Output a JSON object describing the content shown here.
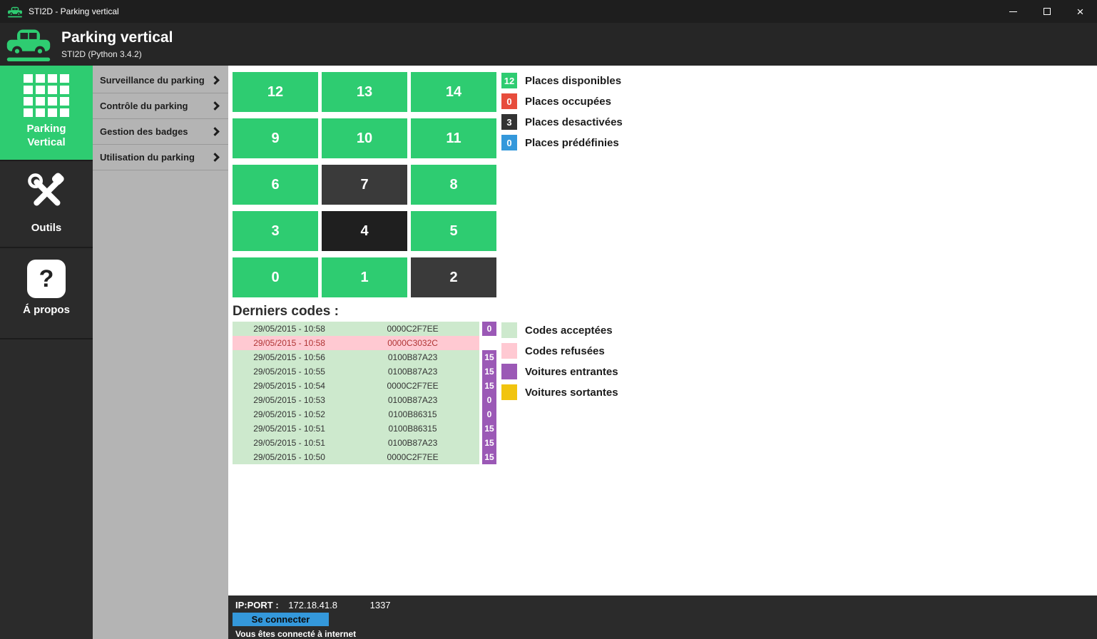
{
  "titlebar": {
    "title": "STI2D - Parking vertical"
  },
  "header": {
    "title": "Parking vertical",
    "subtitle": "STI2D (Python 3.4.2)"
  },
  "sidebar": {
    "items": [
      {
        "label": "Parking Vertical",
        "icon": "parking-grid-icon",
        "active": true
      },
      {
        "label": "Outils",
        "icon": "tools-icon",
        "active": false
      },
      {
        "label": "Á propos",
        "icon": "question-icon",
        "active": false
      }
    ]
  },
  "menu": {
    "items": [
      {
        "label": "Surveillance du parking"
      },
      {
        "label": "Contrôle du parking"
      },
      {
        "label": "Gestion des badges"
      },
      {
        "label": "Utilisation du parking"
      }
    ]
  },
  "colors": {
    "available": "#2ecc71",
    "occupied": "#e74c3c",
    "disabled": "#3a3a3a",
    "disabled_dark": "#1f1f1f",
    "predefined": "#3498db"
  },
  "parking": {
    "spots": [
      {
        "number": "12",
        "state": "available"
      },
      {
        "number": "13",
        "state": "available"
      },
      {
        "number": "14",
        "state": "available"
      },
      {
        "number": "9",
        "state": "available"
      },
      {
        "number": "10",
        "state": "available"
      },
      {
        "number": "11",
        "state": "available"
      },
      {
        "number": "6",
        "state": "available"
      },
      {
        "number": "7",
        "state": "disabled"
      },
      {
        "number": "8",
        "state": "available"
      },
      {
        "number": "3",
        "state": "available"
      },
      {
        "number": "4",
        "state": "disabled_dark"
      },
      {
        "number": "5",
        "state": "available"
      },
      {
        "number": "0",
        "state": "available"
      },
      {
        "number": "1",
        "state": "available"
      },
      {
        "number": "2",
        "state": "disabled"
      }
    ],
    "legend": [
      {
        "count": "12",
        "label": "Places disponibles",
        "color": "#2ecc71"
      },
      {
        "count": "0",
        "label": "Places occupées",
        "color": "#e74c3c"
      },
      {
        "count": "3",
        "label": "Places desactivées",
        "color": "#333333"
      },
      {
        "count": "0",
        "label": "Places prédéfinies",
        "color": "#3498db"
      }
    ]
  },
  "codes": {
    "heading": "Derniers codes :",
    "rows": [
      {
        "datetime": "29/05/2015 - 10:58",
        "code": "0000C2F7EE",
        "badge": "0",
        "status": "accepted"
      },
      {
        "datetime": "29/05/2015 - 10:58",
        "code": "0000C3032C",
        "badge": null,
        "status": "refused"
      },
      {
        "datetime": "29/05/2015 - 10:56",
        "code": "0100B87A23",
        "badge": "15",
        "status": "accepted"
      },
      {
        "datetime": "29/05/2015 - 10:55",
        "code": "0100B87A23",
        "badge": "15",
        "status": "accepted"
      },
      {
        "datetime": "29/05/2015 - 10:54",
        "code": "0000C2F7EE",
        "badge": "15",
        "status": "accepted"
      },
      {
        "datetime": "29/05/2015 - 10:53",
        "code": "0100B87A23",
        "badge": "0",
        "status": "accepted"
      },
      {
        "datetime": "29/05/2015 - 10:52",
        "code": "0100B86315",
        "badge": "0",
        "status": "accepted"
      },
      {
        "datetime": "29/05/2015 - 10:51",
        "code": "0100B86315",
        "badge": "15",
        "status": "accepted"
      },
      {
        "datetime": "29/05/2015 - 10:51",
        "code": "0100B87A23",
        "badge": "15",
        "status": "accepted"
      },
      {
        "datetime": "29/05/2015 - 10:50",
        "code": "0000C2F7EE",
        "badge": "15",
        "status": "accepted"
      }
    ],
    "legend": [
      {
        "label": "Codes acceptées",
        "color": "#cde9cd"
      },
      {
        "label": "Codes refusées",
        "color": "#ffc9d2"
      },
      {
        "label": "Voitures entrantes",
        "color": "#9b59b6"
      },
      {
        "label": "Voitures sortantes",
        "color": "#f1c40f"
      }
    ]
  },
  "footer": {
    "ip_label": "IP:PORT :",
    "ip": "172.18.41.8",
    "port": "1337",
    "connect_button": "Se connecter",
    "status": "Vous êtes connecté à internet"
  },
  "icons": {
    "close": "×",
    "question": "?"
  }
}
